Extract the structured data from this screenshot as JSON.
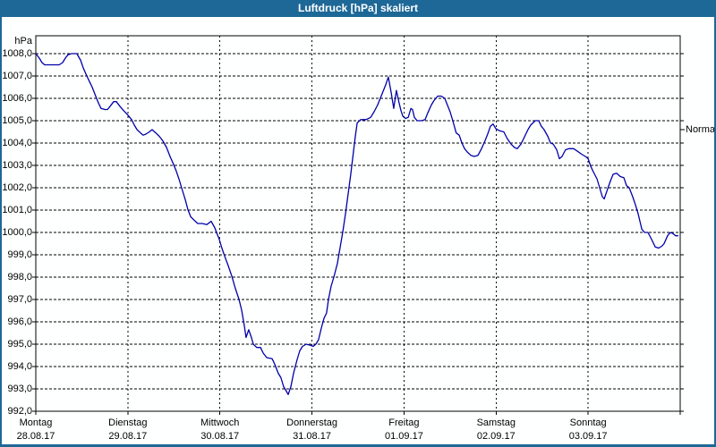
{
  "window": {
    "title": "Luftdruck [hPa] skaliert"
  },
  "chart": {
    "unit_label": "hPa",
    "normal_label": "Normal",
    "colors": {
      "frame": "#1E6897",
      "title_text": "#FFFFFF",
      "line": "#0000AA",
      "grid": "#000000",
      "background": "#FEFFFF"
    }
  },
  "chart_data": {
    "type": "line",
    "title": "Luftdruck [hPa] skaliert",
    "ylabel": "hPa",
    "ylim": [
      992,
      1008
    ],
    "ytick_step": 1.0,
    "ytick_labels": [
      "992,0",
      "993,0",
      "994,0",
      "995,0",
      "996,0",
      "997,0",
      "998,0",
      "999,0",
      "1000,0",
      "1001,0",
      "1002,0",
      "1003,0",
      "1004,0",
      "1005,0",
      "1006,0",
      "1007,0",
      "1008,0"
    ],
    "grid": "dashed",
    "legend_position": "none",
    "normal_marker": {
      "label": "Normal",
      "value": 1004.6
    },
    "x_total_hours": 168,
    "x_days": [
      {
        "name": "Montag",
        "date": "28.08.17"
      },
      {
        "name": "Dienstag",
        "date": "29.08.17"
      },
      {
        "name": "Mittwoch",
        "date": "30.08.17"
      },
      {
        "name": "Donnerstag",
        "date": "31.08.17"
      },
      {
        "name": "Freitag",
        "date": "01.09.17"
      },
      {
        "name": "Samstag",
        "date": "02.09.17"
      },
      {
        "name": "Sonntag",
        "date": "03.09.17"
      }
    ],
    "series": [
      {
        "name": "Luftdruck",
        "unit": "hPa",
        "points": [
          [
            0,
            1008
          ],
          [
            0.9,
            1007.8
          ],
          [
            1.6,
            1007.6
          ],
          [
            2.3,
            1007.5
          ],
          [
            4.2,
            1007.5
          ],
          [
            6.1,
            1007.5
          ],
          [
            7,
            1007.6
          ],
          [
            7.7,
            1007.8
          ],
          [
            8.4,
            1007.95
          ],
          [
            9.3,
            1008
          ],
          [
            10.7,
            1008
          ],
          [
            11.7,
            1007.7
          ],
          [
            12.4,
            1007.35
          ],
          [
            13.3,
            1007
          ],
          [
            14,
            1006.75
          ],
          [
            14.7,
            1006.5
          ],
          [
            15.6,
            1006.1
          ],
          [
            16.3,
            1005.8
          ],
          [
            17,
            1005.55
          ],
          [
            18,
            1005.5
          ],
          [
            18.7,
            1005.5
          ],
          [
            19.4,
            1005.65
          ],
          [
            20.3,
            1005.85
          ],
          [
            21,
            1005.85
          ],
          [
            21.9,
            1005.65
          ],
          [
            22.9,
            1005.45
          ],
          [
            24,
            1005.25
          ],
          [
            25,
            1005.05
          ],
          [
            25.7,
            1004.8
          ],
          [
            26.4,
            1004.6
          ],
          [
            27.3,
            1004.45
          ],
          [
            28,
            1004.35
          ],
          [
            28.7,
            1004.4
          ],
          [
            29.6,
            1004.5
          ],
          [
            30.3,
            1004.6
          ],
          [
            31.3,
            1004.45
          ],
          [
            32.2,
            1004.3
          ],
          [
            33.1,
            1004.1
          ],
          [
            34.1,
            1003.8
          ],
          [
            35,
            1003.4
          ],
          [
            35.9,
            1003.05
          ],
          [
            36.6,
            1002.75
          ],
          [
            37.3,
            1002.4
          ],
          [
            38,
            1002
          ],
          [
            39,
            1001.45
          ],
          [
            39.7,
            1001
          ],
          [
            40.4,
            1000.7
          ],
          [
            41.3,
            1000.55
          ],
          [
            42.2,
            1000.4
          ],
          [
            43.4,
            1000.4
          ],
          [
            44.6,
            1000.35
          ],
          [
            45.7,
            1000.5
          ],
          [
            46.7,
            1000.2
          ],
          [
            47.1,
            1000
          ],
          [
            47.8,
            999.7
          ],
          [
            48.5,
            999.3
          ],
          [
            49.2,
            998.95
          ],
          [
            50.2,
            998.5
          ],
          [
            51.1,
            998.05
          ],
          [
            52,
            997.5
          ],
          [
            53,
            997
          ],
          [
            53.7,
            996.5
          ],
          [
            54.4,
            995.8
          ],
          [
            54.8,
            995.3
          ],
          [
            55.5,
            995.65
          ],
          [
            56.2,
            995.3
          ],
          [
            56.7,
            995
          ],
          [
            57.6,
            994.85
          ],
          [
            58.6,
            994.85
          ],
          [
            59.3,
            994.6
          ],
          [
            60.2,
            994.4
          ],
          [
            61.6,
            994.35
          ],
          [
            62.3,
            994.1
          ],
          [
            63.2,
            993.7
          ],
          [
            63.9,
            993.5
          ],
          [
            64.6,
            993.1
          ],
          [
            65.3,
            992.9
          ],
          [
            65.8,
            992.75
          ],
          [
            66.5,
            993.1
          ],
          [
            67.2,
            993.7
          ],
          [
            68.1,
            994.3
          ],
          [
            68.8,
            994.7
          ],
          [
            69.5,
            994.9
          ],
          [
            70.5,
            995
          ],
          [
            71.6,
            994.95
          ],
          [
            72.3,
            994.9
          ],
          [
            73,
            995
          ],
          [
            73.7,
            995.2
          ],
          [
            74.4,
            995.7
          ],
          [
            75.1,
            996.15
          ],
          [
            75.8,
            996.4
          ],
          [
            76.3,
            997
          ],
          [
            77,
            997.6
          ],
          [
            77.7,
            998
          ],
          [
            78.6,
            998.6
          ],
          [
            79.3,
            999.3
          ],
          [
            80,
            1000
          ],
          [
            80.7,
            1000.8
          ],
          [
            81.4,
            1001.7
          ],
          [
            82.1,
            1002.6
          ],
          [
            82.8,
            1003.6
          ],
          [
            83.3,
            1004.3
          ],
          [
            83.8,
            1004.9
          ],
          [
            84.7,
            1005.05
          ],
          [
            86.1,
            1005.05
          ],
          [
            87.3,
            1005.15
          ],
          [
            88.2,
            1005.4
          ],
          [
            89.1,
            1005.7
          ],
          [
            89.8,
            1006
          ],
          [
            90.5,
            1006.3
          ],
          [
            91.2,
            1006.6
          ],
          [
            91.9,
            1006.95
          ],
          [
            92.6,
            1006.3
          ],
          [
            93.3,
            1005.55
          ],
          [
            94,
            1006.35
          ],
          [
            94.7,
            1005.8
          ],
          [
            95.2,
            1005.45
          ],
          [
            95.7,
            1005.2
          ],
          [
            96.4,
            1005.1
          ],
          [
            97.1,
            1005.15
          ],
          [
            97.8,
            1005.55
          ],
          [
            98.2,
            1005.5
          ],
          [
            98.7,
            1005.15
          ],
          [
            99.4,
            1005
          ],
          [
            100.6,
            1005
          ],
          [
            101.5,
            1005.05
          ],
          [
            102.2,
            1005.35
          ],
          [
            103.1,
            1005.7
          ],
          [
            103.8,
            1005.9
          ],
          [
            104.8,
            1006.1
          ],
          [
            105.7,
            1006.1
          ],
          [
            106.6,
            1006
          ],
          [
            107.3,
            1005.7
          ],
          [
            108,
            1005.4
          ],
          [
            108.7,
            1005
          ],
          [
            109.2,
            1004.7
          ],
          [
            109.6,
            1004.45
          ],
          [
            110.4,
            1004.35
          ],
          [
            111.1,
            1004
          ],
          [
            111.8,
            1003.75
          ],
          [
            112.5,
            1003.6
          ],
          [
            113.4,
            1003.45
          ],
          [
            114.3,
            1003.4
          ],
          [
            115.3,
            1003.45
          ],
          [
            116.2,
            1003.75
          ],
          [
            117.1,
            1004.1
          ],
          [
            117.8,
            1004.4
          ],
          [
            118.5,
            1004.75
          ],
          [
            119.2,
            1004.85
          ],
          [
            119.9,
            1004.65
          ],
          [
            120.9,
            1004.55
          ],
          [
            122,
            1004.5
          ],
          [
            122.9,
            1004.2
          ],
          [
            123.9,
            1003.95
          ],
          [
            124.8,
            1003.8
          ],
          [
            125.5,
            1003.75
          ],
          [
            126.5,
            1003.95
          ],
          [
            127.2,
            1004.2
          ],
          [
            128.3,
            1004.6
          ],
          [
            129,
            1004.8
          ],
          [
            130.2,
            1005
          ],
          [
            131.1,
            1005
          ],
          [
            131.8,
            1004.75
          ],
          [
            132.5,
            1004.6
          ],
          [
            133.5,
            1004.3
          ],
          [
            134.2,
            1004
          ],
          [
            134.9,
            1003.95
          ],
          [
            135.8,
            1003.7
          ],
          [
            136.5,
            1003.3
          ],
          [
            137.2,
            1003.4
          ],
          [
            138.1,
            1003.7
          ],
          [
            139,
            1003.75
          ],
          [
            140.2,
            1003.75
          ],
          [
            141.1,
            1003.65
          ],
          [
            142.3,
            1003.5
          ],
          [
            143.3,
            1003.4
          ],
          [
            144,
            1003.3
          ],
          [
            144.7,
            1002.95
          ],
          [
            145.4,
            1002.7
          ],
          [
            146.3,
            1002.4
          ],
          [
            147,
            1002
          ],
          [
            147.7,
            1001.6
          ],
          [
            148.2,
            1001.5
          ],
          [
            148.9,
            1001.85
          ],
          [
            149.8,
            1002.3
          ],
          [
            150.5,
            1002.6
          ],
          [
            151.4,
            1002.65
          ],
          [
            152.4,
            1002.5
          ],
          [
            153.3,
            1002.45
          ],
          [
            154,
            1002.1
          ],
          [
            154.7,
            1002
          ],
          [
            155.6,
            1001.6
          ],
          [
            156.3,
            1001.25
          ],
          [
            157,
            1000.85
          ],
          [
            157.5,
            1000.5
          ],
          [
            158,
            1000.15
          ],
          [
            158.7,
            1000
          ],
          [
            159.6,
            1000
          ],
          [
            160.5,
            999.7
          ],
          [
            161.5,
            999.35
          ],
          [
            162.4,
            999.3
          ],
          [
            163.3,
            999.4
          ],
          [
            163.8,
            999.5
          ],
          [
            164.7,
            999.85
          ],
          [
            165.4,
            1000
          ],
          [
            166.1,
            999.95
          ],
          [
            166.8,
            999.85
          ],
          [
            167.5,
            999.85
          ]
        ]
      }
    ]
  }
}
